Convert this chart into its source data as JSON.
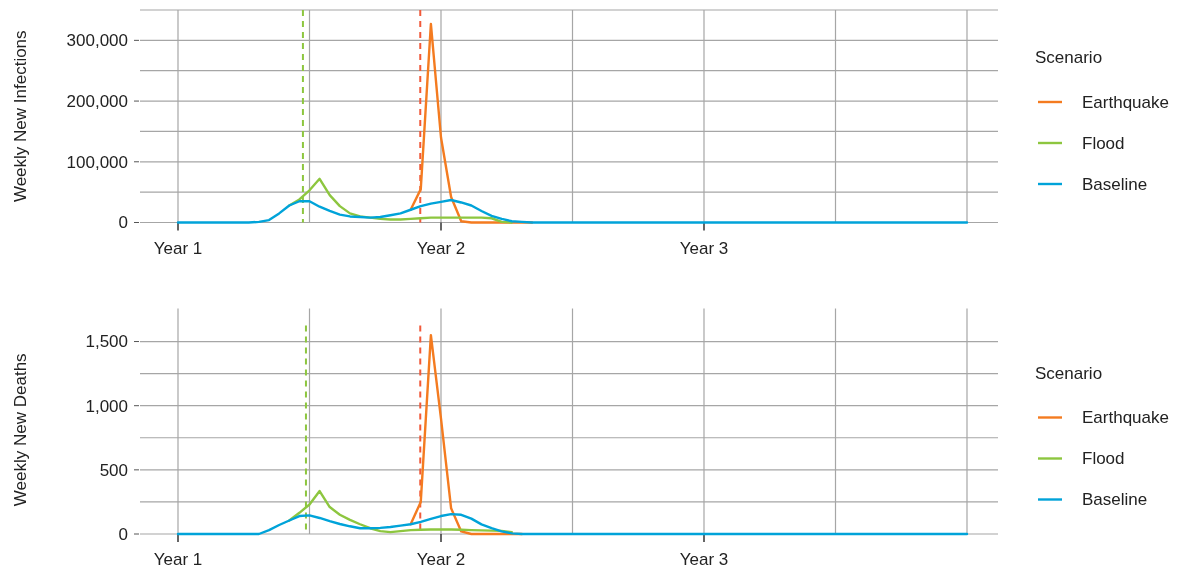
{
  "chart_data": [
    {
      "type": "line",
      "ylabel": "Weekly New Infections",
      "legend_title": "Scenario",
      "legend": "right",
      "grid": true,
      "line_style": "solid",
      "marker": "none",
      "categories": [
        "Year 1",
        null,
        null,
        null,
        null,
        null,
        null,
        null,
        null,
        null,
        null,
        null,
        null,
        null,
        null,
        null,
        null,
        null,
        null,
        null,
        null,
        null,
        null,
        null,
        null,
        null,
        "Year 2",
        null,
        null,
        null,
        null,
        null,
        null,
        null,
        null,
        null,
        null,
        null,
        null,
        null,
        null,
        null,
        null,
        null,
        null,
        null,
        null,
        null,
        null,
        null,
        null,
        null,
        "Year 3",
        null,
        null,
        null,
        null,
        null,
        null,
        null,
        null,
        null,
        null,
        null,
        null,
        null,
        null,
        null,
        null,
        null,
        null,
        null,
        null,
        null,
        null,
        null,
        null,
        null,
        null
      ],
      "ylim": [
        0,
        350000
      ],
      "yticks": [
        {
          "value": 0,
          "label": "0"
        },
        {
          "value": 50000,
          "label": null
        },
        {
          "value": 100000,
          "label": "100,000"
        },
        {
          "value": 150000,
          "label": null
        },
        {
          "value": 200000,
          "label": "200,000"
        },
        {
          "value": 250000,
          "label": null
        },
        {
          "value": 300000,
          "label": "300,000"
        },
        {
          "value": 350000,
          "label": null
        }
      ],
      "series": [
        {
          "name": "Earthquake",
          "color": "#f47b20",
          "values": [
            null,
            null,
            null,
            null,
            null,
            null,
            null,
            null,
            null,
            null,
            null,
            null,
            null,
            null,
            null,
            null,
            null,
            null,
            null,
            null,
            null,
            null,
            null,
            21000,
            55000,
            327000,
            140000,
            42000,
            2000,
            0,
            0,
            0,
            0,
            0,
            0,
            0,
            null,
            null,
            null,
            null,
            null,
            null,
            null,
            null,
            null,
            null,
            null,
            null,
            null,
            null,
            null,
            null,
            null,
            null,
            null,
            null,
            null,
            null,
            null,
            null,
            null,
            null,
            null,
            null,
            null,
            null,
            null,
            null,
            null,
            null,
            null,
            null,
            null,
            null,
            null,
            null,
            null,
            null,
            null
          ]
        },
        {
          "name": "Flood",
          "color": "#8dc63f",
          "values": [
            null,
            null,
            null,
            null,
            null,
            null,
            null,
            null,
            null,
            null,
            null,
            28000,
            38000,
            53000,
            72000,
            45000,
            27000,
            15000,
            10000,
            8000,
            6000,
            5000,
            5000,
            6000,
            7000,
            8000,
            8000,
            8000,
            8000,
            8000,
            8000,
            7000,
            1000,
            0,
            null,
            null,
            null,
            null,
            null,
            null,
            null,
            null,
            null,
            null,
            null,
            null,
            null,
            null,
            null,
            null,
            null,
            null,
            null,
            null,
            null,
            null,
            null,
            null,
            null,
            null,
            null,
            null,
            null,
            null,
            null,
            null,
            null,
            null,
            null,
            null,
            null,
            null,
            null,
            null,
            null,
            null,
            null,
            null,
            null
          ]
        },
        {
          "name": "Baseline",
          "color": "#00a3d9",
          "values": [
            0,
            0,
            0,
            0,
            0,
            0,
            0,
            0,
            1000,
            4000,
            15000,
            28000,
            35000,
            35000,
            26000,
            19000,
            13000,
            10000,
            9000,
            8000,
            9000,
            12000,
            15000,
            21000,
            27000,
            31000,
            34000,
            37000,
            33000,
            28000,
            19000,
            11000,
            6000,
            2000,
            1000,
            0,
            0,
            0,
            0,
            0,
            0,
            0,
            0,
            0,
            0,
            0,
            0,
            0,
            0,
            0,
            0,
            0,
            0,
            0,
            0,
            0,
            0,
            0,
            0,
            0,
            0,
            0,
            0,
            0,
            0,
            0,
            0,
            0,
            0,
            0,
            0,
            0,
            0,
            0,
            0,
            0,
            0,
            0,
            0
          ]
        }
      ]
    },
    {
      "type": "line",
      "ylabel": "Weekly New Deaths",
      "legend_title": "Scenario",
      "legend": "right",
      "grid": true,
      "line_style": "solid",
      "marker": "none",
      "categories": [
        "Year 1",
        null,
        null,
        null,
        null,
        null,
        null,
        null,
        null,
        null,
        null,
        null,
        null,
        null,
        null,
        null,
        null,
        null,
        null,
        null,
        null,
        null,
        null,
        null,
        null,
        null,
        "Year 2",
        null,
        null,
        null,
        null,
        null,
        null,
        null,
        null,
        null,
        null,
        null,
        null,
        null,
        null,
        null,
        null,
        null,
        null,
        null,
        null,
        null,
        null,
        null,
        null,
        null,
        "Year 3",
        null,
        null,
        null,
        null,
        null,
        null,
        null,
        null,
        null,
        null,
        null,
        null,
        null,
        null,
        null,
        null,
        null,
        null,
        null,
        null,
        null,
        null,
        null,
        null,
        null,
        null
      ],
      "ylim": [
        0,
        1625
      ],
      "yticks": [
        {
          "value": 0,
          "label": "0"
        },
        {
          "value": 250,
          "label": null
        },
        {
          "value": 500,
          "label": "500"
        },
        {
          "value": 750,
          "label": null
        },
        {
          "value": 1000,
          "label": "1,000"
        },
        {
          "value": 1250,
          "label": null
        },
        {
          "value": 1500,
          "label": "1,500"
        }
      ],
      "series": [
        {
          "name": "Earthquake",
          "color": "#f47b20",
          "values": [
            null,
            null,
            null,
            null,
            null,
            null,
            null,
            null,
            null,
            null,
            null,
            null,
            null,
            null,
            null,
            null,
            null,
            null,
            null,
            null,
            null,
            null,
            null,
            76,
            250,
            1550,
            900,
            200,
            20,
            0,
            0,
            0,
            0,
            0,
            0,
            null,
            null,
            null,
            null,
            null,
            null,
            null,
            null,
            null,
            null,
            null,
            null,
            null,
            null,
            null,
            null,
            null,
            null,
            null,
            null,
            null,
            null,
            null,
            null,
            null,
            null,
            null,
            null,
            null,
            null,
            null,
            null,
            null,
            null,
            null,
            null,
            null,
            null,
            null,
            null,
            null,
            null,
            null,
            null
          ]
        },
        {
          "name": "Flood",
          "color": "#8dc63f",
          "values": [
            null,
            null,
            null,
            null,
            null,
            null,
            null,
            null,
            null,
            null,
            null,
            105,
            165,
            230,
            335,
            210,
            150,
            110,
            76,
            45,
            22,
            15,
            22,
            30,
            33,
            35,
            36,
            35,
            33,
            30,
            28,
            26,
            24,
            15,
            null,
            null,
            null,
            null,
            null,
            null,
            null,
            null,
            null,
            null,
            null,
            null,
            null,
            null,
            null,
            null,
            null,
            null,
            null,
            null,
            null,
            null,
            null,
            null,
            null,
            null,
            null,
            null,
            null,
            null,
            null,
            null,
            null,
            null,
            null,
            null,
            null,
            null,
            null,
            null,
            null,
            null,
            null,
            null,
            null
          ]
        },
        {
          "name": "Baseline",
          "color": "#00a3d9",
          "values": [
            0,
            0,
            0,
            0,
            0,
            0,
            0,
            0,
            0,
            30,
            70,
            105,
            140,
            145,
            125,
            100,
            78,
            60,
            45,
            45,
            48,
            55,
            65,
            76,
            95,
            118,
            140,
            155,
            150,
            120,
            75,
            45,
            20,
            5,
            0,
            0,
            0,
            0,
            0,
            0,
            0,
            0,
            0,
            0,
            0,
            0,
            0,
            0,
            0,
            0,
            0,
            0,
            0,
            0,
            0,
            0,
            0,
            0,
            0,
            0,
            0,
            0,
            0,
            0,
            0,
            0,
            0,
            0,
            0,
            0,
            0,
            0,
            0,
            0,
            0,
            0,
            0,
            0,
            0
          ]
        }
      ]
    }
  ]
}
